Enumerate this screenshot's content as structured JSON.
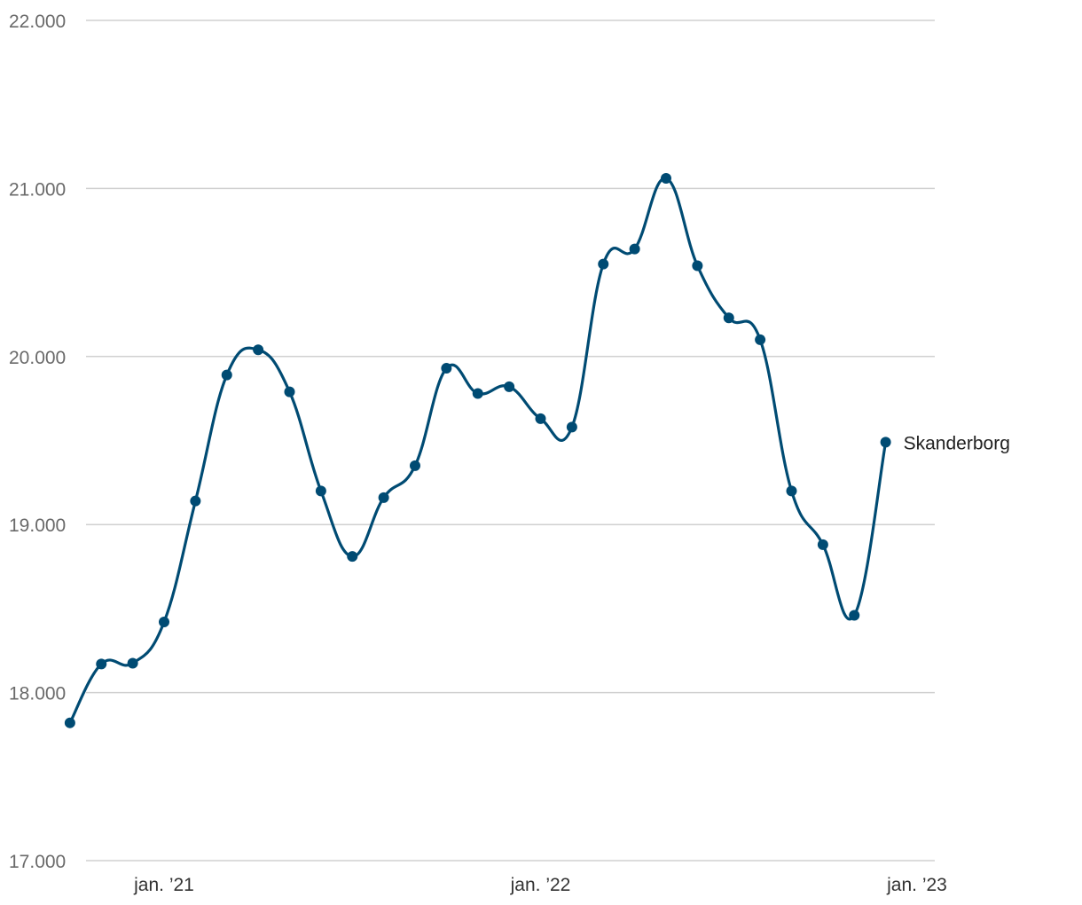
{
  "chart_data": {
    "type": "line",
    "title": "",
    "xlabel": "",
    "ylabel": "",
    "ylim": [
      17000,
      22000
    ],
    "y_ticks": [
      {
        "value": 17000,
        "label": "17.000"
      },
      {
        "value": 18000,
        "label": "18.000"
      },
      {
        "value": 19000,
        "label": "19.000"
      },
      {
        "value": 20000,
        "label": "20.000"
      },
      {
        "value": 21000,
        "label": "21.000"
      },
      {
        "value": 22000,
        "label": "22.000"
      }
    ],
    "x_ticks": [
      {
        "date": "2021-01",
        "label": "jan. ’21"
      },
      {
        "date": "2022-01",
        "label": "jan. ’22"
      },
      {
        "date": "2023-01",
        "label": "jan. ’23"
      }
    ],
    "grid": true,
    "color": "#004b73",
    "series": [
      {
        "name": "Skanderborg",
        "points": [
          {
            "x": "2020-10",
            "y": 17820
          },
          {
            "x": "2020-11",
            "y": 18170
          },
          {
            "x": "2020-12",
            "y": 18175
          },
          {
            "x": "2021-01",
            "y": 18420
          },
          {
            "x": "2021-02",
            "y": 19140
          },
          {
            "x": "2021-03",
            "y": 19890
          },
          {
            "x": "2021-04",
            "y": 20040
          },
          {
            "x": "2021-05",
            "y": 19790
          },
          {
            "x": "2021-06",
            "y": 19200
          },
          {
            "x": "2021-07",
            "y": 18810
          },
          {
            "x": "2021-08",
            "y": 19160
          },
          {
            "x": "2021-09",
            "y": 19350
          },
          {
            "x": "2021-10",
            "y": 19930
          },
          {
            "x": "2021-11",
            "y": 19780
          },
          {
            "x": "2021-12",
            "y": 19820
          },
          {
            "x": "2022-01",
            "y": 19630
          },
          {
            "x": "2022-02",
            "y": 19580
          },
          {
            "x": "2022-03",
            "y": 20550
          },
          {
            "x": "2022-04",
            "y": 20640
          },
          {
            "x": "2022-05",
            "y": 21060
          },
          {
            "x": "2022-06",
            "y": 20540
          },
          {
            "x": "2022-07",
            "y": 20230
          },
          {
            "x": "2022-08",
            "y": 20100
          },
          {
            "x": "2022-09",
            "y": 19200
          },
          {
            "x": "2022-10",
            "y": 18880
          },
          {
            "x": "2022-11",
            "y": 18460
          },
          {
            "x": "2022-12",
            "y": 19490
          }
        ]
      }
    ]
  }
}
